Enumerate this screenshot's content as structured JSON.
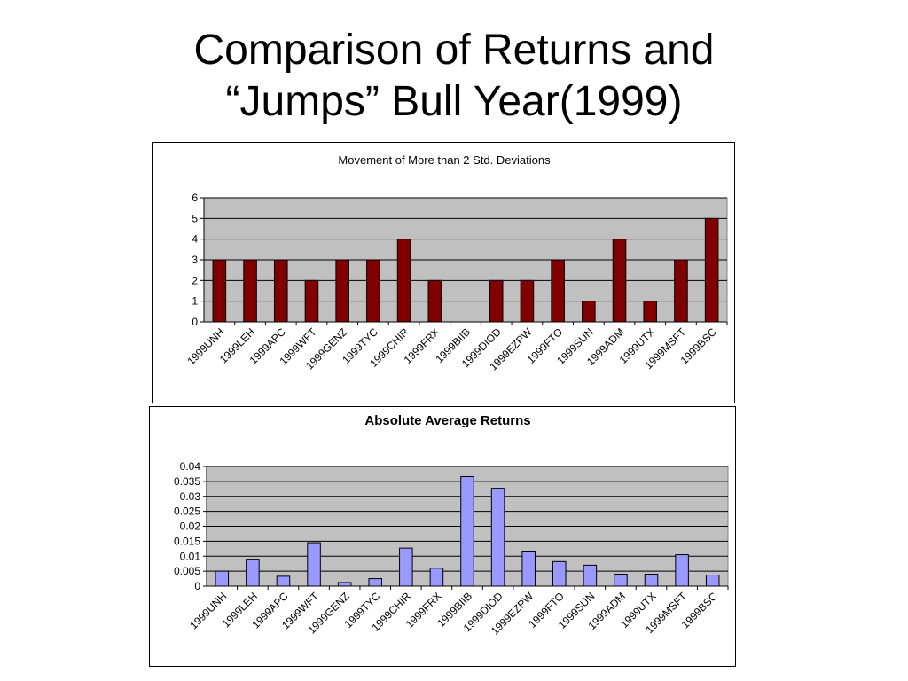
{
  "slide": {
    "title_line1": "Comparison of Returns and",
    "title_line2": "“Jumps” Bull Year(1999)"
  },
  "chart_data": [
    {
      "type": "bar",
      "title": "Movement of More than 2 Std. Deviations",
      "title_bold": false,
      "categories": [
        "1999UNH",
        "1999LEH",
        "1999APC",
        "1999WFT",
        "1999GENZ",
        "1999TYC",
        "1999CHIR",
        "1999FRX",
        "1999BIIB",
        "1999DIOD",
        "1999EZPW",
        "1999FTO",
        "1999SUN",
        "1999ADM",
        "1999UTX",
        "1999MSFT",
        "1999BSC"
      ],
      "values": [
        3,
        3,
        3,
        2,
        3,
        3,
        4,
        2,
        0,
        2,
        2,
        3,
        1,
        4,
        1,
        3,
        5
      ],
      "ylim": [
        0,
        6
      ],
      "yticks": [
        "0",
        "1",
        "2",
        "3",
        "4",
        "5",
        "6"
      ],
      "grid": true,
      "legend": "none",
      "bar_color": "#800000",
      "plot_background": "#c0c0c0"
    },
    {
      "type": "bar",
      "title": "Absolute Average Returns",
      "title_bold": true,
      "categories": [
        "1999UNH",
        "1999LEH",
        "1999APC",
        "1999WFT",
        "1999GENZ",
        "1999TYC",
        "1999CHIR",
        "1999FRX",
        "1999BIIB",
        "1999DIOD",
        "1999EZPW",
        "1999FTO",
        "1999SUN",
        "1999ADM",
        "1999UTX",
        "1999MSFT",
        "1999BSC"
      ],
      "values": [
        0.005,
        0.009,
        0.0033,
        0.0145,
        0.0012,
        0.0025,
        0.0127,
        0.006,
        0.0366,
        0.0327,
        0.0117,
        0.0082,
        0.007,
        0.004,
        0.004,
        0.0105,
        0.0037
      ],
      "ylim": [
        0,
        0.04
      ],
      "yticks": [
        "0",
        "0.005",
        "0.01",
        "0.015",
        "0.02",
        "0.025",
        "0.03",
        "0.035",
        "0.04"
      ],
      "grid": true,
      "legend": "none",
      "bar_color": "#9999ff",
      "plot_background": "#c0c0c0"
    }
  ]
}
